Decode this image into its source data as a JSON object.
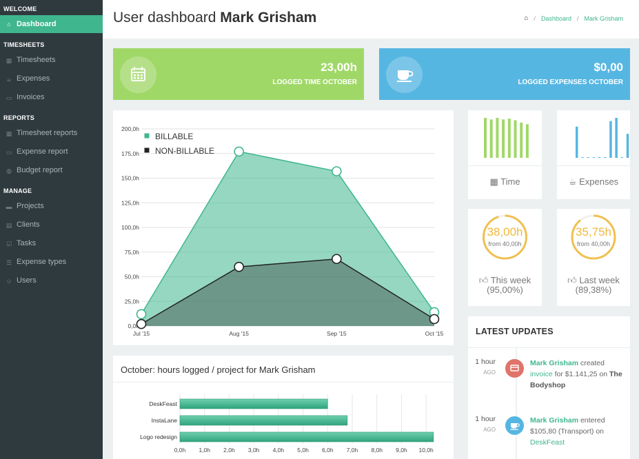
{
  "sidebar": {
    "sections": [
      {
        "title": "WELCOME",
        "items": [
          {
            "label": "Dashboard",
            "icon": "home-icon",
            "active": true
          }
        ]
      },
      {
        "title": "TIMESHEETS",
        "items": [
          {
            "label": "Timesheets",
            "icon": "calendar-icon"
          },
          {
            "label": "Expenses",
            "icon": "coffee-icon"
          },
          {
            "label": "Invoices",
            "icon": "credit-card-icon"
          }
        ]
      },
      {
        "title": "REPORTS",
        "items": [
          {
            "label": "Timesheet reports",
            "icon": "calendar-icon"
          },
          {
            "label": "Expense report",
            "icon": "credit-card-icon"
          },
          {
            "label": "Budget report",
            "icon": "globe-icon"
          }
        ]
      },
      {
        "title": "MANAGE",
        "items": [
          {
            "label": "Projects",
            "icon": "folder-icon"
          },
          {
            "label": "Clients",
            "icon": "id-card-icon"
          },
          {
            "label": "Tasks",
            "icon": "checkbox-icon"
          },
          {
            "label": "Expense types",
            "icon": "list-icon"
          },
          {
            "label": "Users",
            "icon": "users-icon"
          }
        ]
      }
    ]
  },
  "header": {
    "title_prefix": "User dashboard",
    "title_name": "Mark Grisham",
    "breadcrumb": [
      "Dashboard",
      "Mark Grisham"
    ]
  },
  "stats": {
    "time": {
      "value": "23,00h",
      "label": "LOGGED TIME OCTOBER",
      "icon": "calendar-icon"
    },
    "expenses": {
      "value": "$0,00",
      "label": "LOGGED EXPENSES OCTOBER",
      "icon": "coffee-icon"
    }
  },
  "colors": {
    "accent": "#3fb68e",
    "green": "#a0d868",
    "blue": "#56b6e2",
    "orange": "#f0c050",
    "red": "#e0736a",
    "sidebar": "#2f3a3f"
  },
  "mini_cards": {
    "time_label": "Time",
    "expenses_label": "Expenses",
    "this_week": {
      "value": "38,00h",
      "sub": "from 40,00h",
      "label": "This week",
      "pct": "(95,00%)",
      "ratio": 0.95
    },
    "last_week": {
      "value": "35,75h",
      "sub": "from 40,00h",
      "label": "Last week",
      "pct": "(89,38%)",
      "ratio": 0.8938
    },
    "time_sparkline": [
      100,
      96,
      100,
      96,
      98,
      94,
      88,
      84
    ],
    "expenses_sparkline": [
      78,
      0,
      0,
      0,
      0,
      0,
      92,
      100,
      0,
      60
    ]
  },
  "chart_data": [
    {
      "type": "area",
      "categories": [
        "Jul '15",
        "Aug '15",
        "Sep '15",
        "Oct '15"
      ],
      "series": [
        {
          "name": "BILLABLE",
          "color": "#3fb68e",
          "values": [
            12,
            177,
            157,
            14
          ]
        },
        {
          "name": "NON-BILLABLE",
          "color": "#222222",
          "values": [
            2,
            60,
            68,
            7
          ]
        }
      ],
      "ylim": [
        0,
        200
      ],
      "yticks": [
        "0,0h",
        "25,0h",
        "50,0h",
        "75,0h",
        "100,0h",
        "125,0h",
        "150,0h",
        "175,0h",
        "200,0h"
      ],
      "legend": "top-left",
      "grid": true
    },
    {
      "type": "bar",
      "orientation": "horizontal",
      "title": "October: hours logged / project for Mark Grisham",
      "categories": [
        "DeskFeast",
        "InstaLane",
        "Logo redesign"
      ],
      "values": [
        6.0,
        6.8,
        10.3
      ],
      "xlim": [
        0,
        10.5
      ],
      "xticks": [
        "0,0h",
        "1,0h",
        "2,0h",
        "3,0h",
        "4,0h",
        "5,0h",
        "6,0h",
        "7,0h",
        "8,0h",
        "9,0h",
        "10,0h"
      ]
    }
  ],
  "updates": {
    "title": "LATEST UPDATES",
    "items": [
      {
        "time_num": "1 hour",
        "time_unit": "AGO",
        "icon": "credit-card-icon",
        "color": "#e0736a",
        "user": "Mark Grisham",
        "action": "created",
        "link": "invoice",
        "middle": "for $1.141,25 on",
        "target": "The Bodyshop"
      },
      {
        "time_num": "1 hour",
        "time_unit": "AGO",
        "icon": "coffee-icon",
        "color": "#56b6e2",
        "user": "Mark Grisham",
        "action": "entered",
        "link": "",
        "middle": "$105,80 (Transport) on",
        "target": "DeskFeast"
      }
    ]
  }
}
